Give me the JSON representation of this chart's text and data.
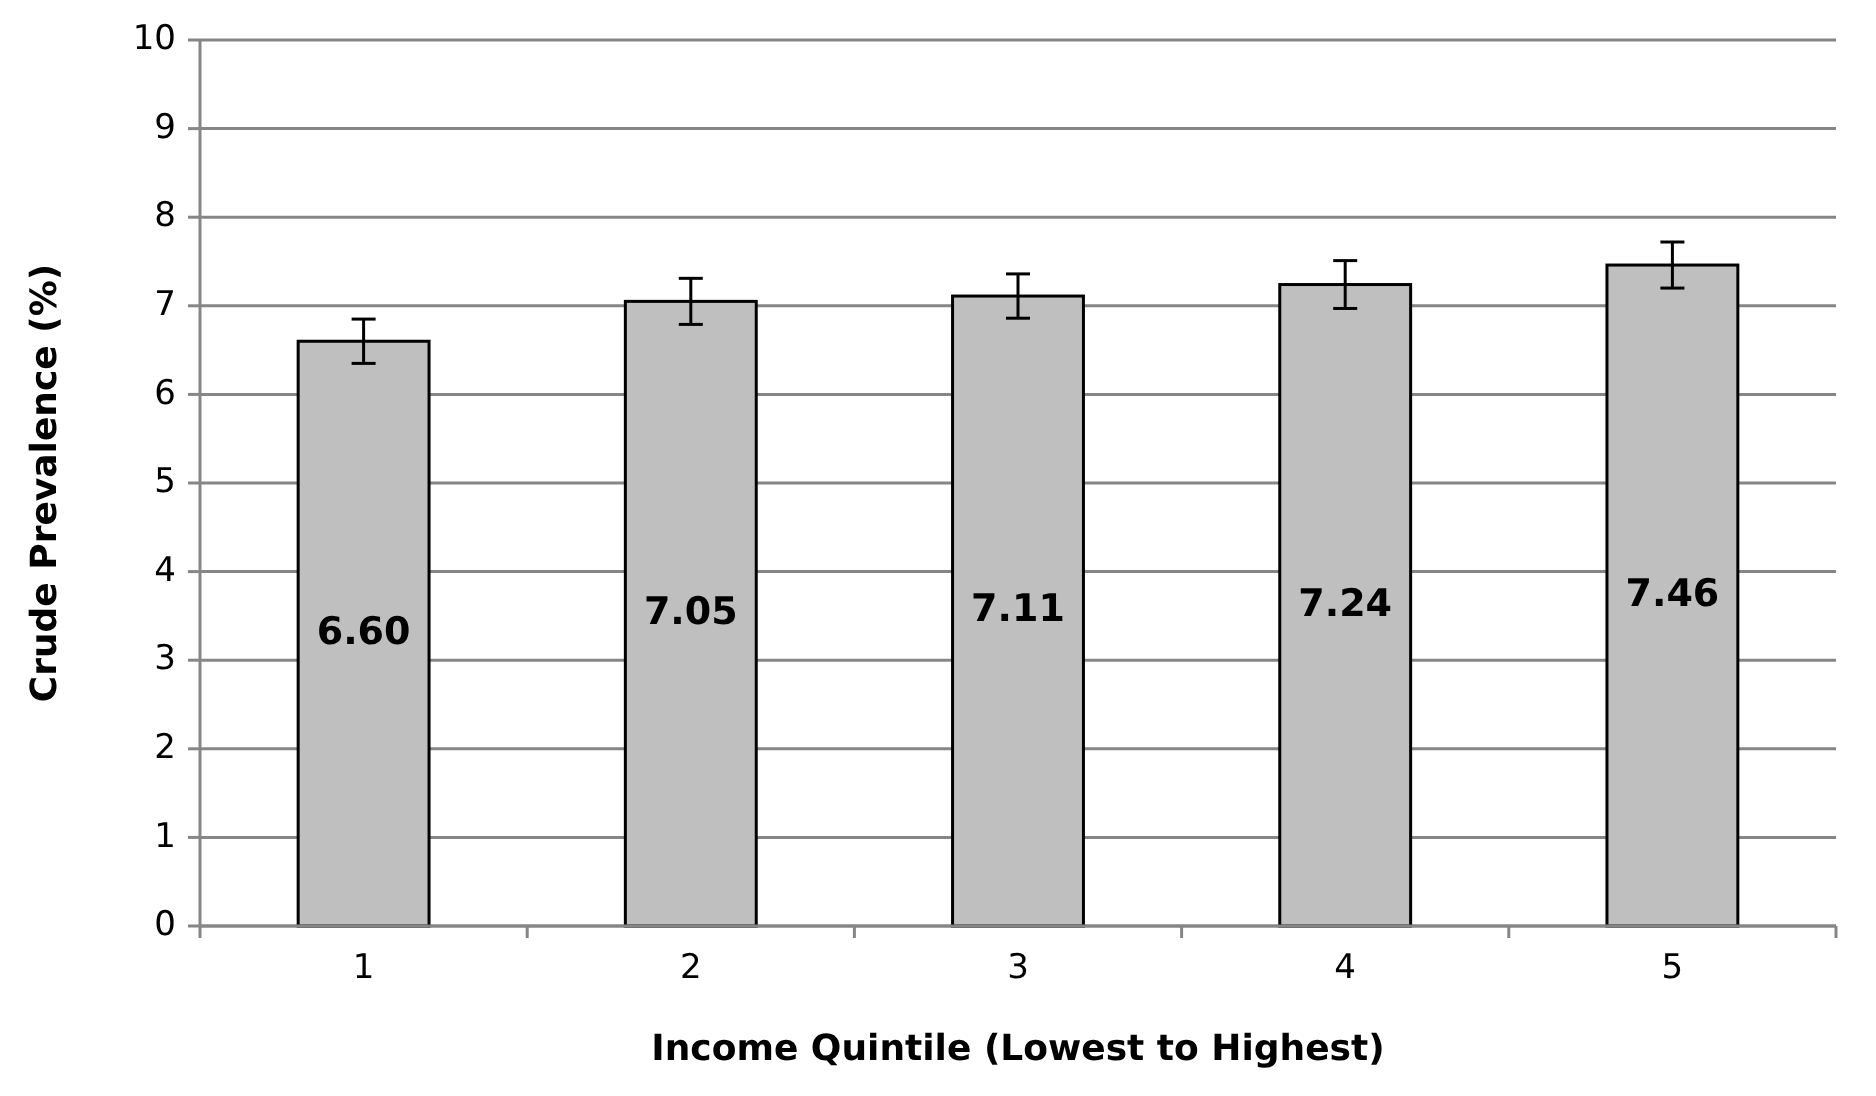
{
  "chart_data": {
    "type": "bar",
    "xlabel": "Income Quintile (Lowest to Highest)",
    "ylabel": "Crude Prevalence (%)",
    "categories": [
      "1",
      "2",
      "3",
      "4",
      "5"
    ],
    "values": [
      6.6,
      7.05,
      7.11,
      7.24,
      7.46
    ],
    "errors": [
      0.25,
      0.26,
      0.25,
      0.27,
      0.26
    ],
    "color": "#bfbfbf",
    "ylim": [
      0,
      10
    ],
    "yticks": [
      0,
      1,
      2,
      3,
      4,
      5,
      6,
      7,
      8,
      9,
      10
    ],
    "value_labels": [
      "6.60",
      "7.05",
      "7.11",
      "7.24",
      "7.46"
    ],
    "grid": "y"
  }
}
